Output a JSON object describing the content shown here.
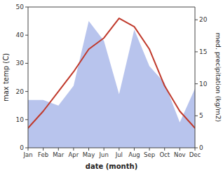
{
  "chart_data": {
    "type": "line",
    "xlabel": "date (month)",
    "ylabel": "max temp (C)",
    "y2label": "med. precipitation (kg/m2)",
    "categories": [
      "Jan",
      "Feb",
      "Mar",
      "Apr",
      "May",
      "Jun",
      "Jul",
      "Aug",
      "Sep",
      "Oct",
      "Nov",
      "Dec"
    ],
    "series": [
      {
        "type": "area",
        "color": "#b8c4ed",
        "values": [
          17,
          17,
          15,
          22,
          45,
          38,
          19,
          42,
          29,
          23,
          9,
          21
        ]
      },
      {
        "type": "line",
        "color": "#c0392b",
        "values": [
          7,
          13,
          20,
          27,
          35,
          39,
          46,
          43,
          35,
          22,
          13,
          7
        ]
      }
    ],
    "ylim": [
      0,
      50
    ],
    "yticks": [
      0,
      10,
      20,
      30,
      40,
      50
    ],
    "y2lim": [
      0,
      22
    ],
    "y2ticks": [
      0,
      5,
      10,
      15,
      20
    ],
    "grid": false
  }
}
